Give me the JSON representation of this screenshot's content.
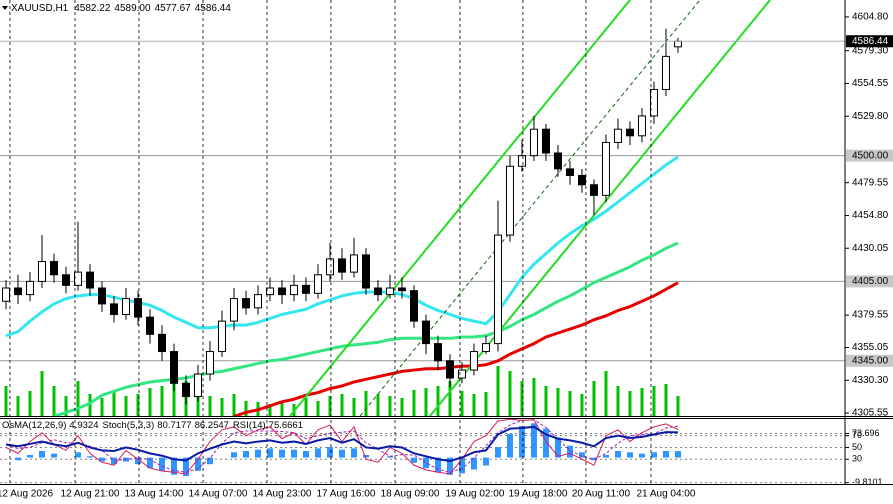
{
  "chart_data": [
    {
      "type": "candlestick",
      "title": "XAUUSD,H1",
      "last_bar_labels": [
        "4582.22",
        "4589.00",
        "4577.67",
        "4586.44"
      ],
      "x": [
        0,
        1,
        2,
        3,
        4,
        5,
        6,
        7,
        8,
        9,
        10,
        11,
        12,
        13,
        14,
        15,
        16,
        17,
        18,
        19,
        20,
        21,
        22,
        23,
        24,
        25,
        26,
        27,
        28,
        29,
        30,
        31,
        32,
        33,
        34,
        35,
        36,
        37,
        38,
        39,
        40,
        41,
        42,
        43,
        44,
        45,
        46,
        47,
        48,
        49,
        50,
        51,
        52,
        53,
        54,
        55,
        56
      ],
      "open": [
        4390,
        4400,
        4395,
        4405,
        4420,
        4410,
        4402,
        4412,
        4400,
        4388,
        4380,
        4392,
        4378,
        4365,
        4352,
        4328,
        4318,
        4335,
        4352,
        4375,
        4392,
        4385,
        4395,
        4400,
        4395,
        4402,
        4396,
        4410,
        4422,
        4412,
        4425,
        4400,
        4395,
        4400,
        4398,
        4375,
        4358,
        4345,
        4332,
        4338,
        4352,
        4358,
        4440,
        4492,
        4500,
        4520,
        4502,
        4490,
        4485,
        4478,
        4470,
        4510,
        4520,
        4515,
        4530,
        4550,
        4582.22
      ],
      "high": [
        4406,
        4410,
        4412,
        4440,
        4426,
        4416,
        4450,
        4418,
        4405,
        4394,
        4400,
        4398,
        4384,
        4372,
        4358,
        4334,
        4342,
        4360,
        4383,
        4400,
        4398,
        4402,
        4408,
        4406,
        4410,
        4408,
        4418,
        4434,
        4430,
        4438,
        4430,
        4406,
        4410,
        4408,
        4402,
        4380,
        4364,
        4350,
        4344,
        4358,
        4364,
        4466,
        4500,
        4512,
        4530,
        4524,
        4508,
        4496,
        4490,
        4482,
        4516,
        4528,
        4526,
        4536,
        4556,
        4596,
        4589
      ],
      "low": [
        4384,
        4388,
        4390,
        4400,
        4404,
        4396,
        4398,
        4394,
        4382,
        4374,
        4376,
        4372,
        4358,
        4345,
        4322,
        4312,
        4314,
        4330,
        4348,
        4368,
        4380,
        4380,
        4390,
        4388,
        4390,
        4390,
        4392,
        4405,
        4406,
        4408,
        4395,
        4390,
        4392,
        4392,
        4370,
        4350,
        4338,
        4325,
        4328,
        4334,
        4350,
        4352,
        4435,
        4488,
        4496,
        4496,
        4484,
        4478,
        4472,
        4455,
        4465,
        4505,
        4508,
        4510,
        4524,
        4545,
        4577.67
      ],
      "close": [
        4400,
        4395,
        4405,
        4420,
        4410,
        4402,
        4412,
        4400,
        4388,
        4380,
        4392,
        4378,
        4365,
        4352,
        4328,
        4318,
        4335,
        4352,
        4375,
        4392,
        4385,
        4395,
        4400,
        4395,
        4402,
        4396,
        4410,
        4422,
        4412,
        4425,
        4400,
        4395,
        4400,
        4398,
        4375,
        4358,
        4345,
        4332,
        4338,
        4352,
        4358,
        4440,
        4492,
        4500,
        4520,
        4502,
        4490,
        4485,
        4478,
        4470,
        4510,
        4520,
        4515,
        4530,
        4550,
        4575,
        4586.44
      ],
      "volumes": [
        30,
        20,
        25,
        45,
        30,
        20,
        35,
        22,
        18,
        25,
        20,
        22,
        28,
        30,
        40,
        35,
        28,
        20,
        18,
        22,
        15,
        14,
        12,
        14,
        12,
        18,
        15,
        20,
        22,
        18,
        25,
        22,
        20,
        18,
        26,
        28,
        30,
        35,
        25,
        22,
        24,
        50,
        45,
        35,
        38,
        30,
        28,
        25,
        22,
        35,
        45,
        30,
        25,
        28,
        30,
        32,
        20
      ],
      "volume_color": "#00c000",
      "series": [
        {
          "color": "#33e6f0",
          "values": [
            4364,
            4367,
            4375,
            4382,
            4388,
            4392,
            4394,
            4395,
            4395,
            4393,
            4391,
            4389,
            4387,
            4383,
            4378,
            4374,
            4370,
            4370,
            4371,
            4372,
            4372,
            4374,
            4377,
            4380,
            4382,
            4384,
            4388,
            4391,
            4394,
            4396,
            4397,
            4397,
            4397,
            4395,
            4392,
            4387,
            4383,
            4380,
            4377,
            4375,
            4373,
            4382,
            4395,
            4408,
            4418,
            4426,
            4434,
            4441,
            4447,
            4452,
            4458,
            4465,
            4472,
            4479,
            4486,
            4493,
            4499
          ]
        },
        {
          "color": "#33e680",
          "values": [
            null,
            null,
            null,
            null,
            4303,
            4306,
            4309,
            4313,
            4319,
            4322,
            4325,
            4327,
            4329,
            4330,
            4331,
            4332,
            4334,
            4336,
            4337,
            4339,
            4341,
            4343,
            4345,
            4346,
            4348,
            4350,
            4352,
            4354,
            4356,
            4357,
            4358,
            4359,
            4361,
            4362,
            4362,
            4362,
            4362,
            4362,
            4363,
            4363,
            4364,
            4367,
            4371,
            4376,
            4380,
            4385,
            4390,
            4394,
            4399,
            4404,
            4408,
            4412,
            4416,
            4421,
            4425,
            4430,
            4434
          ]
        },
        {
          "color": "#e60000",
          "values": [
            null,
            null,
            null,
            null,
            null,
            null,
            null,
            null,
            null,
            null,
            null,
            null,
            null,
            null,
            null,
            null,
            null,
            null,
            null,
            4303,
            4306,
            4308,
            4311,
            4314,
            4316,
            4319,
            4321,
            4324,
            4326,
            4329,
            4331,
            4333,
            4335,
            4337,
            4338,
            4339,
            4339,
            4340,
            4341,
            4341,
            4342,
            4345,
            4350,
            4354,
            4358,
            4363,
            4366,
            4369,
            4372,
            4376,
            4379,
            4383,
            4386,
            4390,
            4394,
            4399,
            4404
          ]
        }
      ],
      "trendlines": [
        {
          "x": [
            23.67,
            52
          ],
          "y": [
            4303.3,
            4617.6
          ],
          "color": "#22dd22"
        },
        {
          "x": [
            35.33,
            63.67
          ],
          "y": [
            4303.3,
            4617.6
          ],
          "color": "#22dd22"
        },
        {
          "x": [
            29.5,
            57.83
          ],
          "y": [
            4303.3,
            4617.6
          ],
          "color": "#116611",
          "dashed": true
        }
      ],
      "levels": [
        {
          "value": 4500,
          "label": "4500.00"
        },
        {
          "value": 4405,
          "label": "4405.00"
        },
        {
          "value": 4345,
          "label": "4345.00"
        }
      ],
      "xlim": [
        -0.5,
        69.92
      ],
      "ylim": [
        4303.3,
        4617.6
      ],
      "yticks": [
        {
          "value": 4604.8,
          "label": "4604.80"
        },
        {
          "value": 4579.3,
          "label": "4579.30"
        },
        {
          "value": 4554.55,
          "label": "4554.55"
        },
        {
          "value": 4529.8,
          "label": "4529.80"
        },
        {
          "value": 4479.55,
          "label": "4479.55"
        },
        {
          "value": 4454.8,
          "label": "4454.80"
        },
        {
          "value": 4430.05,
          "label": "4430.05"
        },
        {
          "value": 4379.55,
          "label": "4379.55"
        },
        {
          "value": 4355.05,
          "label": "4355.05"
        },
        {
          "value": 4330.3,
          "label": "4330.30"
        },
        {
          "value": 4305.55,
          "label": "4305.55"
        }
      ],
      "xticks": [
        {
          "value": 0.33,
          "label": "12 Aug 2026"
        },
        {
          "value": 5.75,
          "label": "12 Aug 21:00"
        },
        {
          "value": 11.08,
          "label": "13 Aug 14:00"
        },
        {
          "value": 16.42,
          "label": "14 Aug 07:00"
        },
        {
          "value": 21.75,
          "label": "14 Aug 23:00"
        },
        {
          "value": 27.08,
          "label": "17 Aug 16:00"
        },
        {
          "value": 32.42,
          "label": "18 Aug 09:00"
        },
        {
          "value": 37.83,
          "label": "19 Aug 02:00"
        },
        {
          "value": 43.08,
          "label": "19 Aug 18:00"
        },
        {
          "value": 48.33,
          "label": "20 Aug 11:00"
        },
        {
          "value": 53.75,
          "label": "21 Aug 04:00"
        }
      ],
      "grid": true
    },
    {
      "type": "line",
      "series": [
        {
          "name": "OsMA(12,26,9)",
          "type": "bar",
          "axis": "y2",
          "color": "#2f95ff",
          "values": [
            0,
            -2,
            2,
            5,
            3,
            0,
            4,
            1,
            -3,
            -5,
            -3,
            -5,
            -8,
            -10,
            -13,
            -14,
            -10,
            -5,
            0,
            4,
            5,
            6,
            7,
            6,
            6,
            5,
            7,
            8,
            6,
            7,
            2,
            0,
            1,
            0,
            -4,
            -8,
            -11,
            -13,
            -12,
            -9,
            -6,
            8,
            18,
            24,
            26,
            22,
            15,
            9,
            4,
            -2,
            2,
            5,
            4,
            3,
            4,
            5,
            4.9324
          ]
        },
        {
          "name": "Stoch(5,3,3)",
          "color": "#d81b60",
          "signal_color": "#9c27b0",
          "values": [
            50,
            40,
            60,
            75,
            55,
            45,
            70,
            40,
            25,
            20,
            45,
            30,
            15,
            10,
            8,
            5,
            30,
            60,
            80,
            85,
            70,
            80,
            85,
            65,
            75,
            55,
            80,
            88,
            60,
            85,
            30,
            25,
            50,
            40,
            20,
            12,
            8,
            5,
            30,
            60,
            70,
            95,
            98,
            96,
            97,
            60,
            35,
            40,
            30,
            20,
            70,
            80,
            60,
            75,
            85,
            90,
            80.7177
          ],
          "signal_values": [
            55,
            48,
            50,
            58,
            63,
            58,
            57,
            52,
            45,
            28,
            30,
            32,
            30,
            18,
            11,
            8,
            14,
            32,
            57,
            75,
            78,
            78,
            78,
            77,
            75,
            65,
            70,
            74,
            76,
            78,
            58,
            47,
            35,
            38,
            37,
            24,
            13,
            8,
            14,
            32,
            53,
            75,
            88,
            96,
            97,
            84,
            64,
            45,
            35,
            30,
            40,
            57,
            70,
            72,
            73,
            83,
            86.2547
          ]
        },
        {
          "name": "RSI(14)",
          "color": "#0a1aa8",
          "values": [
            55,
            52,
            56,
            60,
            55,
            52,
            58,
            50,
            45,
            44,
            50,
            46,
            40,
            36,
            30,
            28,
            40,
            48,
            55,
            60,
            57,
            60,
            62,
            58,
            60,
            56,
            62,
            66,
            58,
            64,
            50,
            48,
            52,
            50,
            40,
            35,
            30,
            27,
            33,
            42,
            45,
            72,
            82,
            83,
            85,
            72,
            65,
            62,
            58,
            52,
            66,
            70,
            66,
            68,
            72,
            76,
            75.6661
          ]
        }
      ],
      "ylim": [
        -12,
        100
      ],
      "yticks": [
        73.696,
        70,
        50,
        30,
        -9.8101
      ],
      "y2lim": [
        -20,
        30
      ],
      "grid": true
    }
  ]
}
